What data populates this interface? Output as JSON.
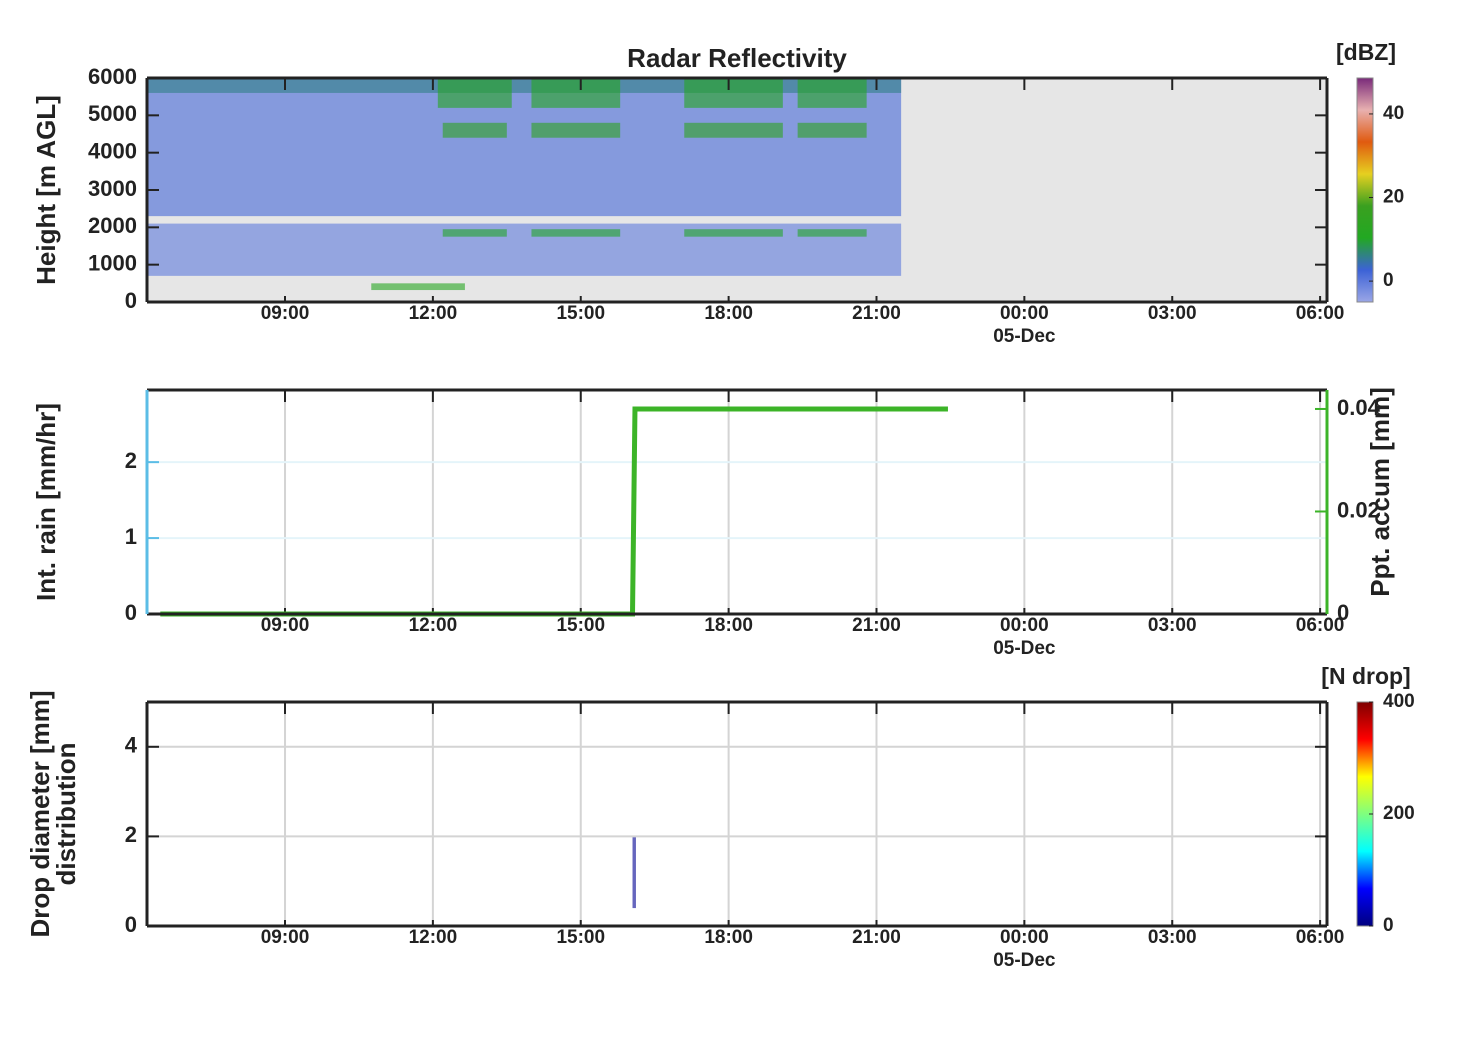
{
  "chart_data": [
    {
      "type": "heatmap",
      "title": "Radar Reflectivity",
      "ylabel": "Height [m AGL]",
      "zlabel": "[dBZ]",
      "xlim": [
        6.2,
        30.14
      ],
      "xticks": [
        {
          "value": 9,
          "label": "09:00"
        },
        {
          "value": 12,
          "label": "12:00"
        },
        {
          "value": 15,
          "label": "15:00"
        },
        {
          "value": 18,
          "label": "18:00"
        },
        {
          "value": 21,
          "label": "21:00"
        },
        {
          "value": 24,
          "label": "00:00",
          "sublabel": "05-Dec"
        },
        {
          "value": 27,
          "label": "03:00"
        },
        {
          "value": 30,
          "label": "06:00"
        }
      ],
      "ylim": [
        0,
        6000
      ],
      "yticks": [
        0,
        1000,
        2000,
        3000,
        4000,
        5000,
        6000
      ],
      "zlim": [
        -5,
        48.6
      ],
      "zticks": [
        0,
        20,
        40
      ],
      "colormap": [
        "#9aa6e6",
        "#3c62d6",
        "#22a822",
        "#3aa020",
        "#e6d020",
        "#e05a10",
        "#e8b0b0",
        "#7a2a7a"
      ],
      "background": "#e6e6e6",
      "grid": false,
      "regions": [
        {
          "x": [
            6.2,
            21.5
          ],
          "y": [
            2300,
            6000
          ],
          "value": 2
        },
        {
          "x": [
            6.2,
            21.5
          ],
          "y": [
            700,
            2100
          ],
          "value": 0
        },
        {
          "x": [
            6.2,
            21.5
          ],
          "y": [
            5600,
            6000
          ],
          "value": 6
        },
        {
          "x": [
            12.1,
            13.6
          ],
          "y": [
            5200,
            6000
          ],
          "value": 12
        },
        {
          "x": [
            14.0,
            15.8
          ],
          "y": [
            5200,
            6000
          ],
          "value": 12
        },
        {
          "x": [
            17.1,
            19.1
          ],
          "y": [
            5200,
            6000
          ],
          "value": 12
        },
        {
          "x": [
            19.4,
            20.8
          ],
          "y": [
            5200,
            6000
          ],
          "value": 12
        },
        {
          "x": [
            12.2,
            13.5
          ],
          "y": [
            4400,
            4800
          ],
          "value": 14
        },
        {
          "x": [
            14.0,
            15.8
          ],
          "y": [
            4400,
            4800
          ],
          "value": 14
        },
        {
          "x": [
            17.1,
            19.1
          ],
          "y": [
            4400,
            4800
          ],
          "value": 14
        },
        {
          "x": [
            19.4,
            20.8
          ],
          "y": [
            4400,
            4800
          ],
          "value": 14
        },
        {
          "x": [
            12.2,
            13.5
          ],
          "y": [
            1750,
            1950
          ],
          "value": 10
        },
        {
          "x": [
            14.0,
            15.8
          ],
          "y": [
            1750,
            1950
          ],
          "value": 10
        },
        {
          "x": [
            17.1,
            19.1
          ],
          "y": [
            1750,
            1950
          ],
          "value": 10
        },
        {
          "x": [
            19.4,
            20.8
          ],
          "y": [
            1750,
            1950
          ],
          "value": 10
        },
        {
          "x": [
            10.75,
            12.65
          ],
          "y": [
            320,
            500
          ],
          "value": 12
        }
      ]
    },
    {
      "type": "line",
      "ylabel": "Int. rain [mm/hr]",
      "y2label": "Ppt. accum [mm]",
      "xlim": [
        6.2,
        30.14
      ],
      "xticks": [
        {
          "value": 9,
          "label": "09:00"
        },
        {
          "value": 12,
          "label": "12:00"
        },
        {
          "value": 15,
          "label": "15:00"
        },
        {
          "value": 18,
          "label": "18:00"
        },
        {
          "value": 21,
          "label": "21:00"
        },
        {
          "value": 24,
          "label": "00:00",
          "sublabel": "05-Dec"
        },
        {
          "value": 27,
          "label": "03:00"
        },
        {
          "value": 30,
          "label": "06:00"
        }
      ],
      "ylim": [
        0,
        2.95
      ],
      "yticks": [
        0,
        1,
        2
      ],
      "ycolor": "#5bbde6",
      "y2lim": [
        0,
        0.0437
      ],
      "y2ticks": [
        0,
        0.02,
        0.04
      ],
      "y2color": "#3cb428",
      "grid": true,
      "series": [
        {
          "name": "Ppt. accum",
          "color": "#3cb428",
          "axis": "y2",
          "x": [
            6.47,
            16.05,
            16.1,
            22.45
          ],
          "values": [
            0,
            0,
            0.04,
            0.04
          ]
        }
      ]
    },
    {
      "type": "heatmap",
      "ylabel": [
        "Drop diameter [mm]",
        "distribution"
      ],
      "zlabel": "[N drop]",
      "xlim": [
        6.2,
        30.14
      ],
      "xticks": [
        {
          "value": 9,
          "label": "09:00"
        },
        {
          "value": 12,
          "label": "12:00"
        },
        {
          "value": 15,
          "label": "15:00"
        },
        {
          "value": 18,
          "label": "18:00"
        },
        {
          "value": 21,
          "label": "21:00"
        },
        {
          "value": 24,
          "label": "00:00",
          "sublabel": "05-Dec"
        },
        {
          "value": 27,
          "label": "03:00"
        },
        {
          "value": 30,
          "label": "06:00"
        }
      ],
      "ylim": [
        0,
        5
      ],
      "yticks": [
        0,
        2,
        4
      ],
      "zlim": [
        0,
        400
      ],
      "zticks": [
        0,
        200,
        400
      ],
      "colormap": [
        "#00007f",
        "#0000ff",
        "#00ffff",
        "#7fff7f",
        "#ffff00",
        "#ff0000",
        "#7f0000"
      ],
      "background": "#ffffff",
      "grid": true,
      "regions": [
        {
          "x": [
            16.05,
            16.12
          ],
          "y": [
            0.4,
            2.0
          ],
          "value": 10
        }
      ]
    }
  ]
}
